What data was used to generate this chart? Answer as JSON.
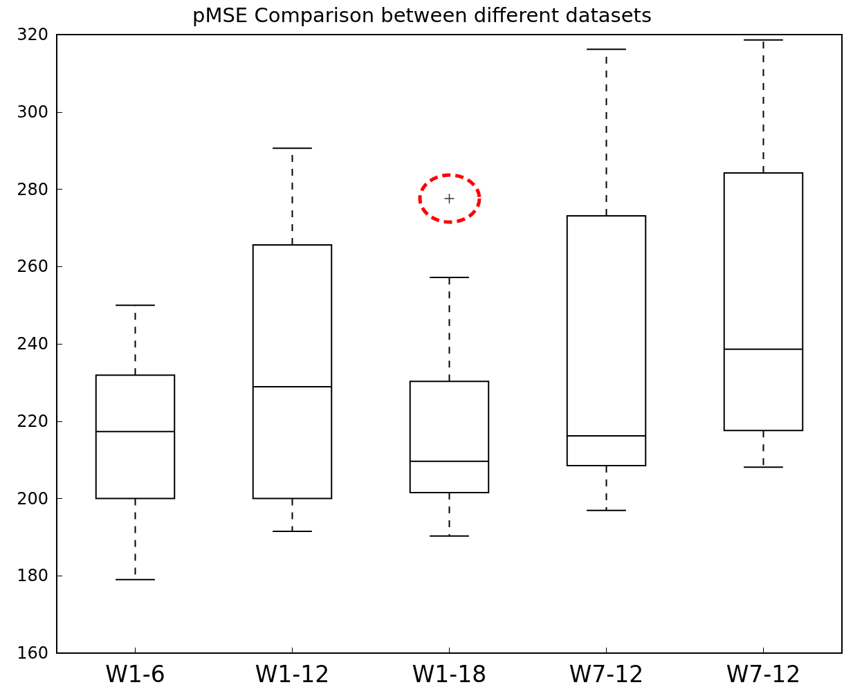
{
  "chart_data": {
    "type": "box",
    "title": "pMSE Comparison between different datasets",
    "categories": [
      "W1-6",
      "W1-12",
      "W1-18",
      "W7-12",
      "W7-12"
    ],
    "boxes": [
      {
        "low": 179,
        "q1": 200,
        "median": 217.3,
        "q3": 231.9,
        "high": 250
      },
      {
        "low": 191.5,
        "q1": 200,
        "median": 228.9,
        "q3": 265.6,
        "high": 290.6
      },
      {
        "low": 190.3,
        "q1": 201.5,
        "median": 209.6,
        "q3": 230.3,
        "high": 257.2,
        "outliers": [
          277.6
        ]
      },
      {
        "low": 196.9,
        "q1": 208.5,
        "median": 216.2,
        "q3": 273.1,
        "high": 316.2
      },
      {
        "low": 208.1,
        "q1": 217.6,
        "median": 238.6,
        "q3": 284.2,
        "high": 318.6
      }
    ],
    "color": "#000000",
    "ylim": [
      160,
      320
    ],
    "yticks": [
      160,
      180,
      200,
      220,
      240,
      260,
      280,
      300,
      320
    ],
    "grid": false,
    "legend": false,
    "marker": "cross"
  }
}
